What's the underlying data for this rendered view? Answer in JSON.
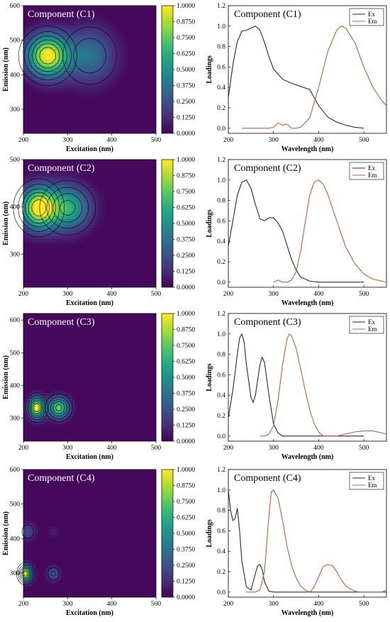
{
  "colorbar": {
    "ticks": [
      "1.0000",
      "0.8750",
      "0.7500",
      "0.6250",
      "0.5000",
      "0.3750",
      "0.2500",
      "0.1250",
      "0.0000"
    ]
  },
  "colors": {
    "ex": "#2b2b2b",
    "em": "#b5643c",
    "bg": "#46085c",
    "contour": "#000000"
  },
  "chart_data": [
    {
      "type": "heatmap",
      "title": "Component (C1)",
      "xlabel": "Excitation (nm)",
      "ylabel": "Emission (nm)",
      "xlim": [
        200,
        500
      ],
      "ylim": [
        230,
        600
      ],
      "xticks": [
        "200",
        "300",
        "400",
        "500"
      ],
      "yticks": [
        "300",
        "400",
        "500",
        "600"
      ],
      "colormap": "viridis",
      "crange": [
        0,
        1
      ],
      "peaks": [
        {
          "ex": 255,
          "em": 455,
          "intensity": 1.0,
          "sx": 32,
          "sy": 42
        },
        {
          "ex": 350,
          "em": 455,
          "intensity": 0.38,
          "sx": 40,
          "sy": 55
        }
      ]
    },
    {
      "type": "line",
      "title": "Component (C1)",
      "xlabel": "Wavelength (nm)",
      "ylabel": "Loadings",
      "xlim": [
        200,
        550
      ],
      "ylim": [
        -0.05,
        1.2
      ],
      "xticks": [
        "200",
        "300",
        "400",
        "500"
      ],
      "yticks": [
        "0.0",
        "0.2",
        "0.4",
        "0.6",
        "0.8",
        "1.0",
        "1.2"
      ],
      "legend": "top-right",
      "series": [
        {
          "name": "Ex",
          "x": [
            200,
            210,
            220,
            230,
            240,
            250,
            260,
            270,
            280,
            290,
            300,
            320,
            340,
            360,
            380,
            400,
            420,
            440,
            460,
            480,
            500
          ],
          "y": [
            0.3,
            0.62,
            0.85,
            0.95,
            0.96,
            0.98,
            1.0,
            0.96,
            0.84,
            0.7,
            0.58,
            0.48,
            0.44,
            0.41,
            0.38,
            0.22,
            0.11,
            0.06,
            0.03,
            0.01,
            0.0
          ]
        },
        {
          "name": "Em",
          "x": [
            230,
            250,
            270,
            290,
            300,
            310,
            320,
            330,
            340,
            350,
            360,
            380,
            400,
            420,
            440,
            450,
            460,
            480,
            500,
            520,
            540,
            550
          ],
          "y": [
            0.0,
            0.0,
            0.0,
            0.0,
            0.01,
            0.05,
            0.03,
            0.04,
            0.0,
            0.0,
            0.01,
            0.1,
            0.4,
            0.75,
            0.96,
            1.0,
            0.98,
            0.84,
            0.6,
            0.4,
            0.27,
            0.22
          ]
        }
      ]
    },
    {
      "type": "heatmap",
      "title": "Component (C2)",
      "xlabel": "Excitation (nm)",
      "ylabel": "Emission (nm)",
      "xlim": [
        200,
        500
      ],
      "ylim": [
        230,
        500
      ],
      "xticks": [
        "200",
        "300",
        "400",
        "500"
      ],
      "yticks": [
        "300",
        "400",
        "500"
      ],
      "colormap": "viridis",
      "crange": [
        0,
        1
      ],
      "peaks": [
        {
          "ex": 235,
          "em": 398,
          "intensity": 1.0,
          "sx": 28,
          "sy": 30
        },
        {
          "ex": 300,
          "em": 398,
          "intensity": 0.62,
          "sx": 35,
          "sy": 32
        }
      ]
    },
    {
      "type": "line",
      "title": "Component (C2)",
      "xlabel": "Wavelength (nm)",
      "ylabel": "Loadings",
      "xlim": [
        200,
        550
      ],
      "ylim": [
        -0.05,
        1.2
      ],
      "xticks": [
        "200",
        "300",
        "400",
        "500"
      ],
      "yticks": [
        "0.0",
        "0.2",
        "0.4",
        "0.6",
        "0.8",
        "1.0",
        "1.2"
      ],
      "legend": "top-right",
      "series": [
        {
          "name": "Ex",
          "x": [
            200,
            210,
            220,
            230,
            240,
            250,
            260,
            270,
            280,
            290,
            300,
            310,
            320,
            330,
            340,
            350,
            360,
            380,
            400,
            450,
            500
          ],
          "y": [
            0.35,
            0.6,
            0.85,
            0.98,
            1.0,
            0.92,
            0.76,
            0.62,
            0.6,
            0.63,
            0.63,
            0.58,
            0.5,
            0.36,
            0.22,
            0.12,
            0.05,
            0.01,
            0.0,
            0.0,
            0.0
          ]
        },
        {
          "name": "Em",
          "x": [
            300,
            310,
            320,
            330,
            340,
            350,
            360,
            370,
            380,
            390,
            400,
            410,
            420,
            440,
            460,
            480,
            500,
            520,
            540,
            550
          ],
          "y": [
            0.0,
            0.02,
            0.0,
            0.0,
            0.02,
            0.1,
            0.3,
            0.58,
            0.85,
            0.98,
            1.0,
            0.96,
            0.86,
            0.6,
            0.34,
            0.18,
            0.08,
            0.03,
            0.01,
            0.0
          ]
        }
      ]
    },
    {
      "type": "heatmap",
      "title": "Component (C3)",
      "xlabel": "Excitation (nm)",
      "ylabel": "Emission (nm)",
      "xlim": [
        200,
        500
      ],
      "ylim": [
        230,
        620
      ],
      "xticks": [
        "200",
        "300",
        "400",
        "500"
      ],
      "yticks": [
        "300",
        "400",
        "500",
        "600"
      ],
      "colormap": "viridis",
      "crange": [
        0,
        1
      ],
      "peaks": [
        {
          "ex": 230,
          "em": 332,
          "intensity": 1.0,
          "sx": 12,
          "sy": 22
        },
        {
          "ex": 280,
          "em": 332,
          "intensity": 0.77,
          "sx": 16,
          "sy": 22
        }
      ]
    },
    {
      "type": "line",
      "title": "Component (C3)",
      "xlabel": "Wavelength (nm)",
      "ylabel": "Loadings",
      "xlim": [
        200,
        550
      ],
      "ylim": [
        -0.05,
        1.2
      ],
      "xticks": [
        "200",
        "300",
        "400",
        "500"
      ],
      "yticks": [
        "0.0",
        "0.2",
        "0.4",
        "0.6",
        "0.8",
        "1.0",
        "1.2"
      ],
      "legend": "top-right",
      "series": [
        {
          "name": "Ex",
          "x": [
            200,
            210,
            220,
            225,
            230,
            235,
            240,
            250,
            255,
            260,
            270,
            275,
            280,
            290,
            300,
            310,
            320,
            350,
            400,
            450,
            500
          ],
          "y": [
            0.18,
            0.45,
            0.8,
            0.96,
            1.0,
            0.92,
            0.7,
            0.38,
            0.33,
            0.4,
            0.7,
            0.77,
            0.72,
            0.4,
            0.12,
            0.03,
            0.0,
            0.0,
            0.0,
            0.0,
            0.0
          ]
        },
        {
          "name": "Em",
          "x": [
            270,
            280,
            290,
            300,
            310,
            320,
            330,
            335,
            340,
            350,
            360,
            370,
            380,
            390,
            400,
            410,
            420,
            440,
            460,
            480,
            500,
            520,
            540,
            550
          ],
          "y": [
            0.0,
            0.0,
            0.02,
            0.1,
            0.35,
            0.7,
            0.95,
            1.0,
            0.98,
            0.86,
            0.66,
            0.45,
            0.26,
            0.12,
            0.04,
            0.0,
            0.0,
            0.0,
            0.02,
            0.04,
            0.05,
            0.05,
            0.03,
            0.02
          ]
        }
      ]
    },
    {
      "type": "heatmap",
      "title": "Component (C4)",
      "xlabel": "Excitation (nm)",
      "ylabel": "Emission (nm)",
      "xlim": [
        200,
        500
      ],
      "ylim": [
        230,
        600
      ],
      "xticks": [
        "200",
        "300",
        "400",
        "500"
      ],
      "yticks": [
        "300",
        "400",
        "500",
        "600"
      ],
      "colormap": "viridis",
      "crange": [
        0,
        1
      ],
      "peaks": [
        {
          "ex": 205,
          "em": 298,
          "intensity": 0.95,
          "sx": 10,
          "sy": 16
        },
        {
          "ex": 268,
          "em": 298,
          "intensity": 0.28,
          "sx": 10,
          "sy": 14
        },
        {
          "ex": 210,
          "em": 420,
          "intensity": 0.22,
          "sx": 12,
          "sy": 18
        },
        {
          "ex": 268,
          "em": 420,
          "intensity": 0.08,
          "sx": 10,
          "sy": 14
        }
      ]
    },
    {
      "type": "line",
      "title": "Component (C4)",
      "xlabel": "Wavelength (nm)",
      "ylabel": "Loadings",
      "xlim": [
        200,
        550
      ],
      "ylim": [
        -0.05,
        1.2
      ],
      "xticks": [
        "200",
        "300",
        "400",
        "500"
      ],
      "yticks": [
        "0.0",
        "0.2",
        "0.4",
        "0.6",
        "0.8",
        "1.0",
        "1.2"
      ],
      "legend": "top-right",
      "series": [
        {
          "name": "Ex",
          "x": [
            200,
            205,
            210,
            215,
            220,
            225,
            230,
            240,
            250,
            260,
            265,
            270,
            275,
            280,
            290,
            300,
            350,
            400,
            450,
            500,
            550
          ],
          "y": [
            1.0,
            0.8,
            0.7,
            0.72,
            0.82,
            0.6,
            0.3,
            0.05,
            0.02,
            0.18,
            0.26,
            0.27,
            0.22,
            0.1,
            0.01,
            0.0,
            0.0,
            0.0,
            0.0,
            0.0,
            0.0
          ]
        },
        {
          "name": "Em",
          "x": [
            240,
            260,
            270,
            280,
            290,
            295,
            300,
            310,
            320,
            330,
            340,
            350,
            360,
            370,
            380,
            390,
            400,
            410,
            420,
            430,
            440,
            450,
            460,
            470,
            480,
            490,
            500,
            520,
            540,
            550
          ],
          "y": [
            0.0,
            0.0,
            0.02,
            0.2,
            0.75,
            0.98,
            1.0,
            0.92,
            0.7,
            0.45,
            0.26,
            0.14,
            0.06,
            0.02,
            0.0,
            0.05,
            0.15,
            0.25,
            0.27,
            0.26,
            0.2,
            0.12,
            0.06,
            0.03,
            0.01,
            0.0,
            0.0,
            0.0,
            0.0,
            0.02
          ]
        }
      ]
    }
  ]
}
